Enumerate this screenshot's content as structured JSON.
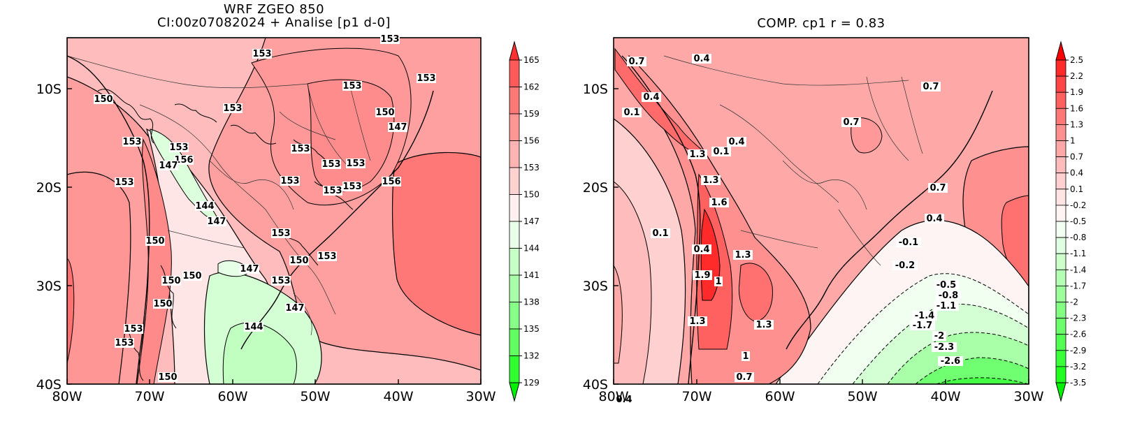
{
  "left_panel": {
    "title_line1": "WRF ZGEO 850",
    "title_line2": "CI:00z07082024 + Analise  [p1 d-0]",
    "y_ticks": [
      "10S",
      "20S",
      "30S",
      "40S"
    ],
    "x_ticks": [
      "80W",
      "70W",
      "60W",
      "50W",
      "40W",
      "30W"
    ],
    "colorbar_labels": [
      "165",
      "162",
      "159",
      "156",
      "153",
      "150",
      "147",
      "144",
      "141",
      "138",
      "135",
      "132",
      "129"
    ],
    "colorbar_colors": [
      "#ff3030",
      "#ff5a5a",
      "#ff7878",
      "#ff9696",
      "#ffb4b4",
      "#ffd2d2",
      "#fff0f0",
      "#eaffea",
      "#c8ffc8",
      "#a8ffa8",
      "#88ff88",
      "#62ff62",
      "#30ff30",
      "#00f000"
    ],
    "contour_labels": [
      "153",
      "153",
      "153",
      "150",
      "153",
      "153",
      "150",
      "147",
      "153",
      "153",
      "153",
      "156",
      "153",
      "153",
      "153",
      "153",
      "156",
      "153",
      "153",
      "144",
      "147",
      "147",
      "150",
      "153",
      "153",
      "150",
      "150",
      "153",
      "150",
      "147",
      "150",
      "144",
      "147",
      "153",
      "153",
      "150"
    ]
  },
  "right_panel": {
    "title": "COMP. cp1  r =  0.83",
    "y_ticks": [
      "10S",
      "20S",
      "30S",
      "40S"
    ],
    "x_ticks": [
      "80W",
      "70W",
      "60W",
      "50W",
      "40W",
      "30W"
    ],
    "colorbar_labels": [
      "2.5",
      "2.2",
      "1.9",
      "1.6",
      "1.3",
      "1",
      "0.7",
      "0.4",
      "0.1",
      "-0.2",
      "-0.5",
      "-0.8",
      "-1.1",
      "-1.4",
      "-1.7",
      "-2",
      "-2.3",
      "-2.6",
      "-2.9",
      "-3.2",
      "-3.5"
    ],
    "colorbar_colors": [
      "#ff0000",
      "#ff2a2a",
      "#ff4646",
      "#ff6060",
      "#ff7878",
      "#ff9090",
      "#ffa8a8",
      "#ffbcbc",
      "#ffd0d0",
      "#ffe4e4",
      "#fff4f4",
      "#f2fff2",
      "#e0ffe0",
      "#ccffcc",
      "#b4ffb4",
      "#9cff9c",
      "#84ff84",
      "#6cff6c",
      "#54ff54",
      "#3cff3c",
      "#20ff20",
      "#00f000"
    ],
    "contour_labels": [
      "0.7",
      "0.4",
      "0.1",
      "0.4",
      "0.7",
      "0.7",
      "1.3",
      "0.1",
      "0.4",
      "1.3",
      "1.6",
      "0.7",
      "0.4",
      "0.1",
      "0.4",
      "1.3",
      "-0.1",
      "-0.2",
      "1.9",
      "1",
      "1.3",
      "-0.5",
      "-0.8",
      "-1.1",
      "-1.4",
      "-1.7",
      "-2",
      "-2.3",
      "-2.6",
      "1.3",
      "0.4",
      "1",
      "0.7"
    ]
  }
}
